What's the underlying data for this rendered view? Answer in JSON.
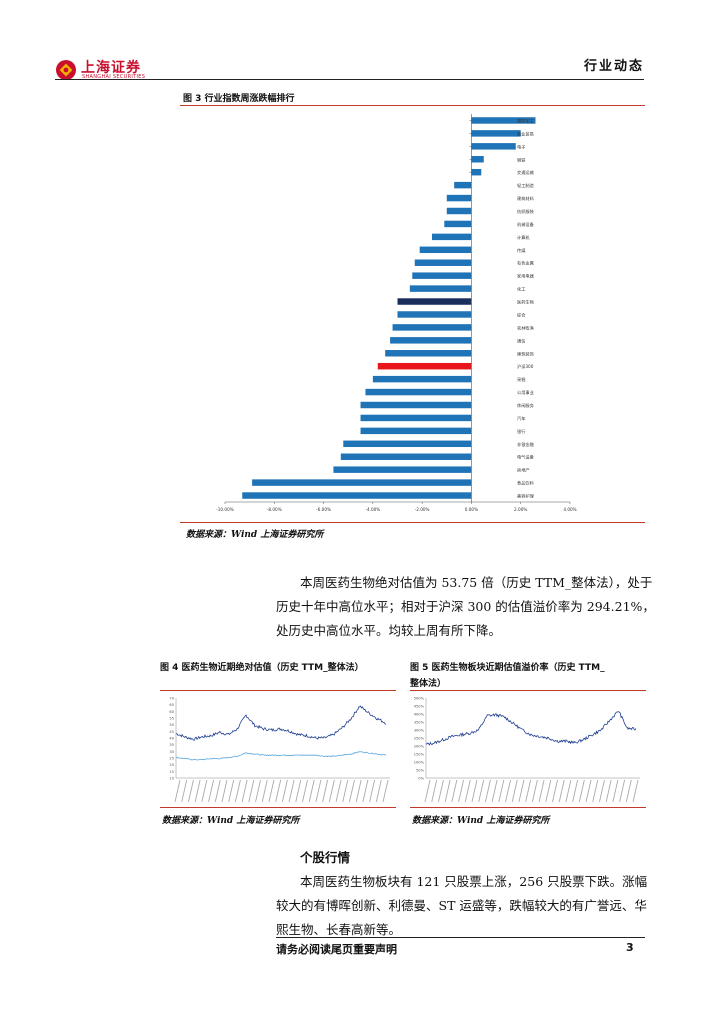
{
  "header": {
    "brand_cn": "上海证券",
    "brand_en": "SHANGHAI SECURITIES",
    "section_label": "行业动态"
  },
  "figure3": {
    "caption": "图 3 行业指数周涨跌幅排行",
    "source": "数据来源：Wind  上海证券研究所"
  },
  "paragraph1": {
    "line1": "本周医药生物绝对估值为 53.75 倍（历史 TTM_整体法），处于",
    "line2": "历史十年中高位水平；相对于沪深 300 的估值溢价率为 294.21%，",
    "line3": "处历史中高位水平。均较上周有所下降。"
  },
  "figure4": {
    "caption": "图 4 医药生物近期绝对估值（历史 TTM_整体法）",
    "source": "数据来源：Wind  上海证券研究所"
  },
  "figure5": {
    "caption_line1": "图 5 医药生物板块近期估值溢价率（历史 TTM_",
    "caption_line2": "整体法）",
    "source": "数据来源：Wind  上海证券研究所"
  },
  "section2": {
    "heading": "个股行情",
    "line1": "本周医药生物板块有 121 只股票上涨，256 只股票下跌。涨幅",
    "line2": "较大的有博晖创新、利德曼、ST 运盛等，跌幅较大的有广誉远、华",
    "line3": "熙生物、长春高新等。"
  },
  "footer": {
    "disclaimer": "请务必阅读尾页重要声明",
    "page_number": "3"
  },
  "colors": {
    "bar_default": "#1f73b7",
    "bar_pharma": "#1a2e5c",
    "bar_hs300": "#e8161b",
    "brand_red": "#c8102e"
  },
  "chart_data": [
    {
      "type": "bar",
      "orientation": "horizontal",
      "categories": [
        "国防军工",
        "商业贸易",
        "电子",
        "钢铁",
        "交通运输",
        "轻工制造",
        "建筑材料",
        "纺织服装",
        "机械设备",
        "计算机",
        "传媒",
        "有色金属",
        "家用电器",
        "化工",
        "医药生物",
        "综合",
        "农林牧渔",
        "通信",
        "建筑装饰",
        "沪深300",
        "采掘",
        "公用事业",
        "休闲服务",
        "汽车",
        "银行",
        "非银金融",
        "电气设备",
        "房地产",
        "食品饮料",
        "美容护理"
      ],
      "values": [
        2.6,
        2.0,
        1.8,
        0.5,
        0.4,
        -0.7,
        -1.0,
        -1.0,
        -1.1,
        -1.6,
        -2.1,
        -2.3,
        -2.4,
        -2.5,
        -3.0,
        -3.0,
        -3.2,
        -3.3,
        -3.5,
        -3.8,
        -4.0,
        -4.3,
        -4.5,
        -4.5,
        -4.5,
        -5.2,
        -5.3,
        -5.6,
        -8.9,
        -9.3
      ],
      "highlight": {
        "医药生物": "pharma",
        "沪深300": "index"
      },
      "xlim": [
        -10,
        4
      ],
      "xticks": [
        "-10.00%",
        "-8.00%",
        "-6.00%",
        "-4.00%",
        "-2.00%",
        "0.00%",
        "2.00%",
        "4.00%"
      ],
      "tick_values": [
        -10,
        -8,
        -6,
        -4,
        -2,
        0,
        2,
        4
      ],
      "grid": false
    },
    {
      "type": "line",
      "series": [
        {
          "values": [
            39,
            36,
            34,
            36,
            37,
            40,
            38,
            43,
            55,
            46,
            43,
            42,
            43,
            41,
            38,
            37,
            35,
            35,
            38,
            44,
            52,
            63,
            57,
            52,
            48
          ]
        },
        {
          "values": [
            18,
            17,
            16,
            16,
            17,
            17,
            18,
            19,
            22,
            21,
            20,
            20,
            20,
            20,
            20,
            20,
            20,
            19,
            19,
            20,
            21,
            23,
            22,
            21,
            20
          ]
        }
      ],
      "ylim": [
        0,
        70
      ],
      "yticks": [
        "70",
        "65",
        "60",
        "55",
        "50",
        "45",
        "40",
        "35",
        "30",
        "25",
        "20",
        "15",
        "10"
      ]
    },
    {
      "type": "line",
      "series": [
        {
          "values": [
            210,
            220,
            240,
            260,
            270,
            280,
            300,
            390,
            395,
            380,
            340,
            300,
            270,
            260,
            250,
            230,
            230,
            220,
            240,
            270,
            300,
            360,
            420,
            310,
            305
          ]
        }
      ],
      "ylim": [
        0,
        500
      ],
      "yticks": [
        "500%",
        "450%",
        "400%",
        "350%",
        "300%",
        "250%",
        "200%",
        "150%",
        "100%",
        "50%",
        "0%"
      ]
    }
  ]
}
